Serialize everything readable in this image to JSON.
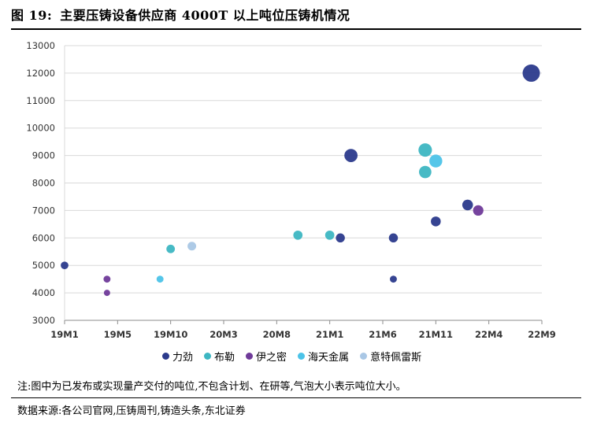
{
  "figure": {
    "label": "图 19:",
    "title": "主要压铸设备供应商 4000T 以上吨位压铸机情况"
  },
  "note": "注:图中为已发布或实现量产交付的吨位,不包含计划、在研等,气泡大小表示吨位大小。",
  "source": "数据来源:各公司官网,压铸周刊,铸造头条,东北证券",
  "chart_data": {
    "type": "scatter",
    "title": "",
    "xlabel": "",
    "ylabel": "",
    "ylim": [
      3000,
      13000
    ],
    "yticks": [
      3000,
      4000,
      5000,
      6000,
      7000,
      8000,
      9000,
      10000,
      11000,
      12000,
      13000
    ],
    "xticks": [
      "19M1",
      "19M5",
      "19M10",
      "20M3",
      "20M8",
      "21M1",
      "21M6",
      "21M11",
      "22M4",
      "22M9"
    ],
    "x_unit": "month index from 19M1",
    "xlim": [
      0,
      45
    ],
    "grid": "horizontal",
    "legend_position": "bottom",
    "bubble_size_encodes": "tonnage",
    "series": [
      {
        "name": "力劲",
        "color": "#2b3a8c",
        "points": [
          {
            "x": 0,
            "y": 5000
          },
          {
            "x": 26,
            "y": 6000
          },
          {
            "x": 27,
            "y": 9000
          },
          {
            "x": 31,
            "y": 6000
          },
          {
            "x": 31,
            "y": 4500
          },
          {
            "x": 35,
            "y": 6600
          },
          {
            "x": 38,
            "y": 7200
          },
          {
            "x": 44,
            "y": 12000
          }
        ]
      },
      {
        "name": "布勒",
        "color": "#3db6c2",
        "points": [
          {
            "x": 10,
            "y": 5600
          },
          {
            "x": 22,
            "y": 6100
          },
          {
            "x": 25,
            "y": 6100
          },
          {
            "x": 34,
            "y": 9200
          },
          {
            "x": 34,
            "y": 8400
          }
        ]
      },
      {
        "name": "伊之密",
        "color": "#6f3a99",
        "points": [
          {
            "x": 4,
            "y": 4500
          },
          {
            "x": 4,
            "y": 4000
          },
          {
            "x": 39,
            "y": 7000
          }
        ]
      },
      {
        "name": "海天金属",
        "color": "#4cc3e8",
        "points": [
          {
            "x": 9,
            "y": 4500
          },
          {
            "x": 35,
            "y": 8800
          }
        ]
      },
      {
        "name": "意特佩雷斯",
        "color": "#a9c7e5",
        "points": [
          {
            "x": 12,
            "y": 5700
          }
        ]
      }
    ]
  }
}
